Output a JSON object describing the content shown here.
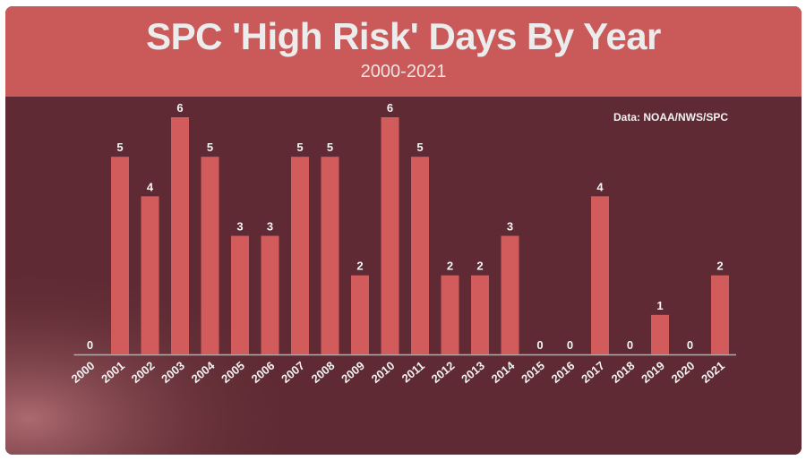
{
  "colors": {
    "header_bg": "#c95a59",
    "plot_bg": "#5f2a33",
    "bar": "#d25b5c",
    "text": "#f2f2f2"
  },
  "chart_data": {
    "type": "bar",
    "title": "SPC 'High Risk' Days By Year",
    "subtitle": "2000-2021",
    "source": "Data: NOAA/NWS/SPC",
    "categories": [
      "2000",
      "2001",
      "2002",
      "2003",
      "2004",
      "2005",
      "2006",
      "2007",
      "2008",
      "2009",
      "2010",
      "2011",
      "2012",
      "2013",
      "2014",
      "2015",
      "2016",
      "2017",
      "2018",
      "2019",
      "2020",
      "2021"
    ],
    "values": [
      0,
      5,
      4,
      6,
      5,
      3,
      3,
      5,
      5,
      2,
      6,
      5,
      2,
      2,
      3,
      0,
      0,
      4,
      0,
      1,
      0,
      2
    ],
    "xlabel": "",
    "ylabel": "",
    "ylim": [
      0,
      6
    ],
    "grid": false,
    "legend": "none",
    "data_labels": true
  }
}
